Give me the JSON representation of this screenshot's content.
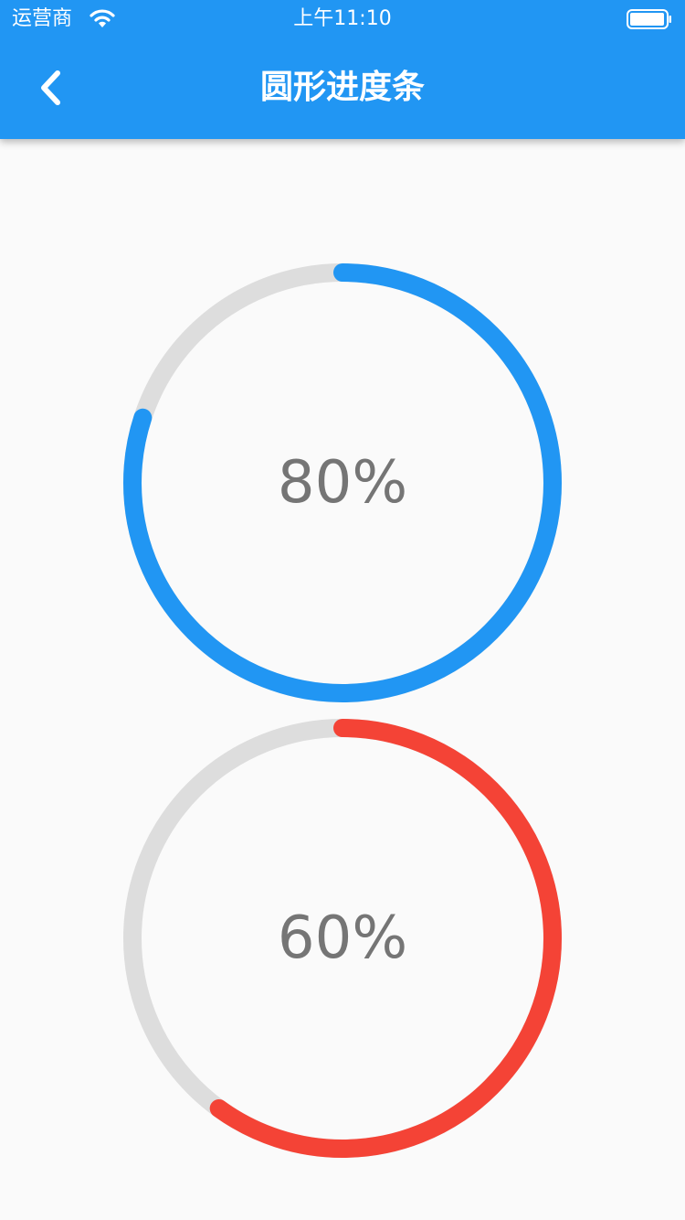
{
  "status_bar": {
    "carrier": "运营商",
    "time": "上午11:10",
    "wifi_icon": "wifi-icon",
    "battery_icon": "battery-icon"
  },
  "app_bar": {
    "title": "圆形进度条",
    "back_icon": "chevron-left-icon",
    "background_color": "#2196f3"
  },
  "progress_indicators": [
    {
      "label": "80%",
      "value": 0.8,
      "color": "#2196f3",
      "track_color": "#dddddd"
    },
    {
      "label": "60%",
      "value": 0.6,
      "color": "#f44336",
      "track_color": "#dddddd"
    }
  ]
}
